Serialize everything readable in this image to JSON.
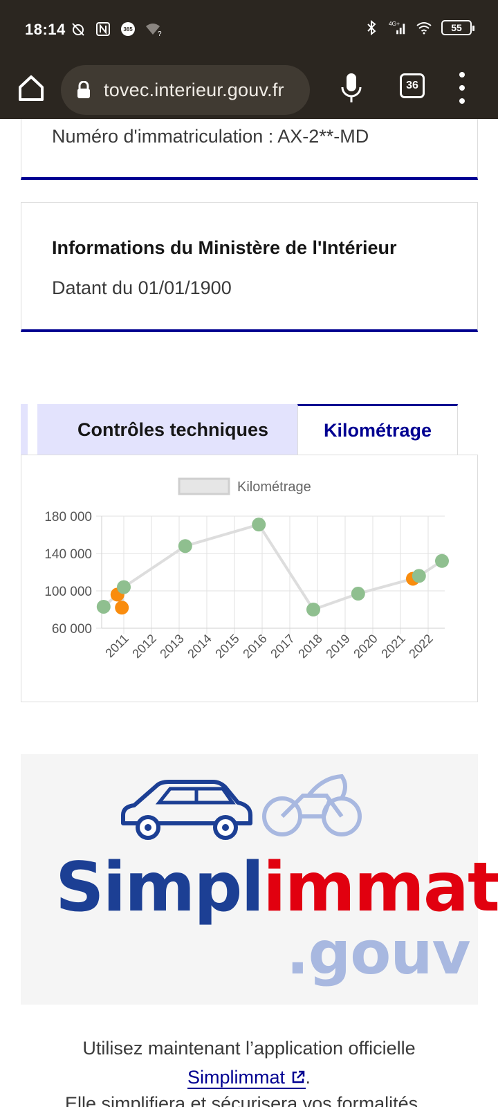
{
  "status_bar": {
    "time": "18:14",
    "network": "4G+",
    "battery": "55"
  },
  "browser": {
    "url": "tovec.interieur.gouv.fr",
    "tab_count": "36"
  },
  "vehicle_card": {
    "registration": "Numéro d'immatriculation : AX-2**-MD"
  },
  "ministry_card": {
    "title": "Informations du Ministère de l'Intérieur",
    "date_line": "Datant du 01/01/1900"
  },
  "tabs": {
    "items": [
      "Contrôles techniques",
      "Kilométrage"
    ],
    "active": "Kilométrage"
  },
  "chart_data": {
    "type": "line",
    "legend": "Kilométrage",
    "x_ticks": [
      "2011",
      "2012",
      "2013",
      "2014",
      "2015",
      "2016",
      "2017",
      "2018",
      "2019",
      "2020",
      "2021",
      "2022"
    ],
    "y_ticks": [
      "60 000",
      "100 000",
      "140 000",
      "180 000"
    ],
    "ylim": [
      60000,
      180000
    ],
    "xlim": [
      2010.2,
      2022.6
    ],
    "grid": true,
    "series": [
      {
        "name": "Kilométrage",
        "color": "#dddddd",
        "points": [
          {
            "x": 2010.27,
            "y": 83000,
            "color": "#8fbf8f"
          },
          {
            "x": 2010.77,
            "y": 96000,
            "color": "#f98c0e"
          },
          {
            "x": 2010.93,
            "y": 82000,
            "color": "#f98c0e"
          },
          {
            "x": 2011.0,
            "y": 104000,
            "color": "#8fbf8f"
          },
          {
            "x": 2013.22,
            "y": 148000,
            "color": "#8fbf8f"
          },
          {
            "x": 2015.88,
            "y": 171000,
            "color": "#8fbf8f"
          },
          {
            "x": 2017.85,
            "y": 80000,
            "color": "#8fbf8f"
          },
          {
            "x": 2019.47,
            "y": 97000,
            "color": "#8fbf8f"
          },
          {
            "x": 2021.45,
            "y": 113000,
            "color": "#f98c0e"
          },
          {
            "x": 2021.67,
            "y": 116000,
            "color": "#8fbf8f"
          },
          {
            "x": 2022.5,
            "y": 132000,
            "color": "#8fbf8f"
          }
        ]
      }
    ]
  },
  "logo": {
    "word_part1": "Simpl",
    "word_part2": "immat",
    "suffix": ".gouv",
    "colors": {
      "blue": "#1c3f94",
      "red": "#e1000f",
      "light_blue": "#a8b8e0"
    }
  },
  "bottom": {
    "line1": "Utilisez maintenant l’application officielle",
    "link": "Simplimmat",
    "after_link": ".",
    "line3_prefix": "Elle simplifiera et sécurisera vos formalités"
  }
}
